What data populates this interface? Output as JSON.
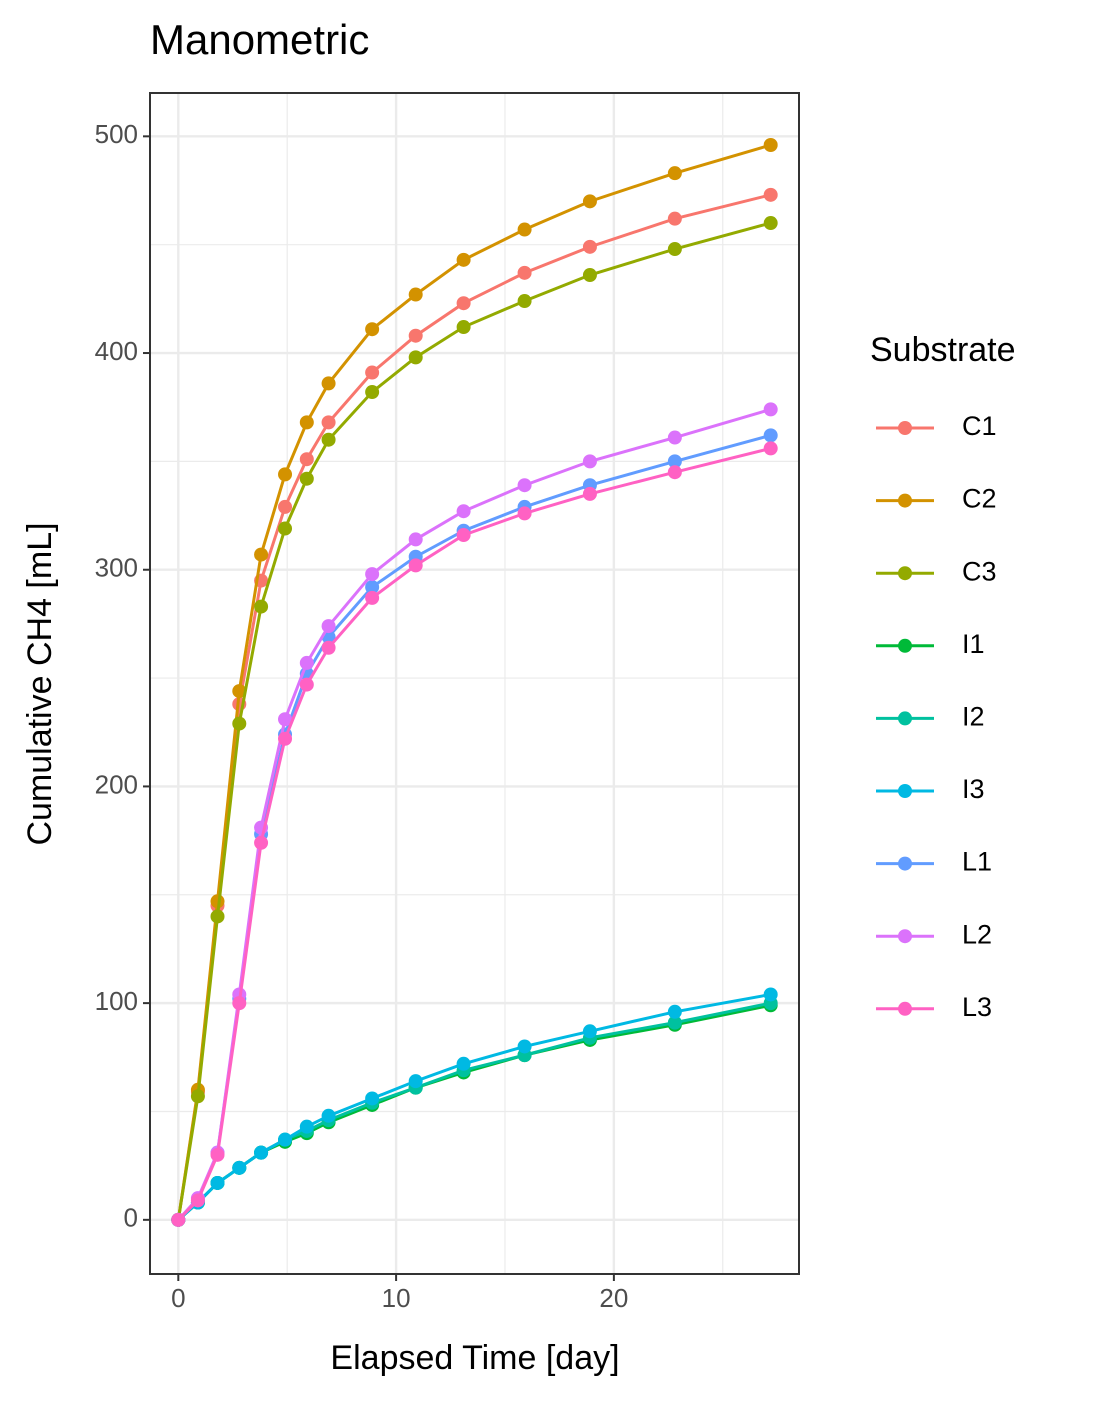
{
  "chart_data": {
    "type": "line",
    "title": "Manometric",
    "x_label": "Elapsed Time [day]",
    "y_label": "Cumulative CH4 [mL]",
    "legend_title": "Substrate",
    "legend_position": "right",
    "grid": true,
    "x": [
      0,
      0.9,
      1.8,
      2.8,
      3.8,
      4.9,
      5.9,
      6.9,
      8.9,
      10.9,
      13.1,
      15.9,
      18.9,
      22.8,
      27.2
    ],
    "xlim": [
      -1.3,
      28.5
    ],
    "xticks": [
      0,
      10,
      20
    ],
    "ylim": [
      -25,
      520
    ],
    "yticks": [
      0,
      100,
      200,
      300,
      400,
      500
    ],
    "series": [
      {
        "name": "C1",
        "color": "#F8766D",
        "values": [
          0,
          59,
          145,
          238,
          295,
          329,
          351,
          368,
          391,
          408,
          423,
          437,
          449,
          462,
          473
        ]
      },
      {
        "name": "C2",
        "color": "#D39200",
        "values": [
          0,
          60,
          147,
          244,
          307,
          344,
          368,
          386,
          411,
          427,
          443,
          457,
          470,
          483,
          496
        ]
      },
      {
        "name": "C3",
        "color": "#93AA00",
        "values": [
          0,
          57,
          140,
          229,
          283,
          319,
          342,
          360,
          382,
          398,
          412,
          424,
          436,
          448,
          460
        ]
      },
      {
        "name": "I1",
        "color": "#00BA38",
        "values": [
          0,
          8,
          17,
          24,
          31,
          36,
          40,
          45,
          53,
          61,
          68,
          76,
          83,
          90,
          99
        ]
      },
      {
        "name": "I2",
        "color": "#00C19F",
        "values": [
          0,
          8,
          17,
          24,
          31,
          37,
          41,
          46,
          54,
          61,
          69,
          76,
          84,
          91,
          100
        ]
      },
      {
        "name": "I3",
        "color": "#00B9E3",
        "values": [
          0,
          8,
          17,
          24,
          31,
          37,
          43,
          48,
          56,
          64,
          72,
          80,
          87,
          96,
          104
        ]
      },
      {
        "name": "L1",
        "color": "#619CFF",
        "values": [
          0,
          9,
          31,
          102,
          178,
          224,
          252,
          269,
          292,
          306,
          318,
          329,
          339,
          350,
          362
        ]
      },
      {
        "name": "L2",
        "color": "#DB72FB",
        "values": [
          0,
          10,
          31,
          104,
          181,
          231,
          257,
          274,
          298,
          314,
          327,
          339,
          350,
          361,
          374
        ]
      },
      {
        "name": "L3",
        "color": "#FF61C3",
        "values": [
          0,
          9,
          30,
          100,
          174,
          222,
          247,
          264,
          287,
          302,
          316,
          326,
          335,
          345,
          356
        ]
      }
    ]
  }
}
